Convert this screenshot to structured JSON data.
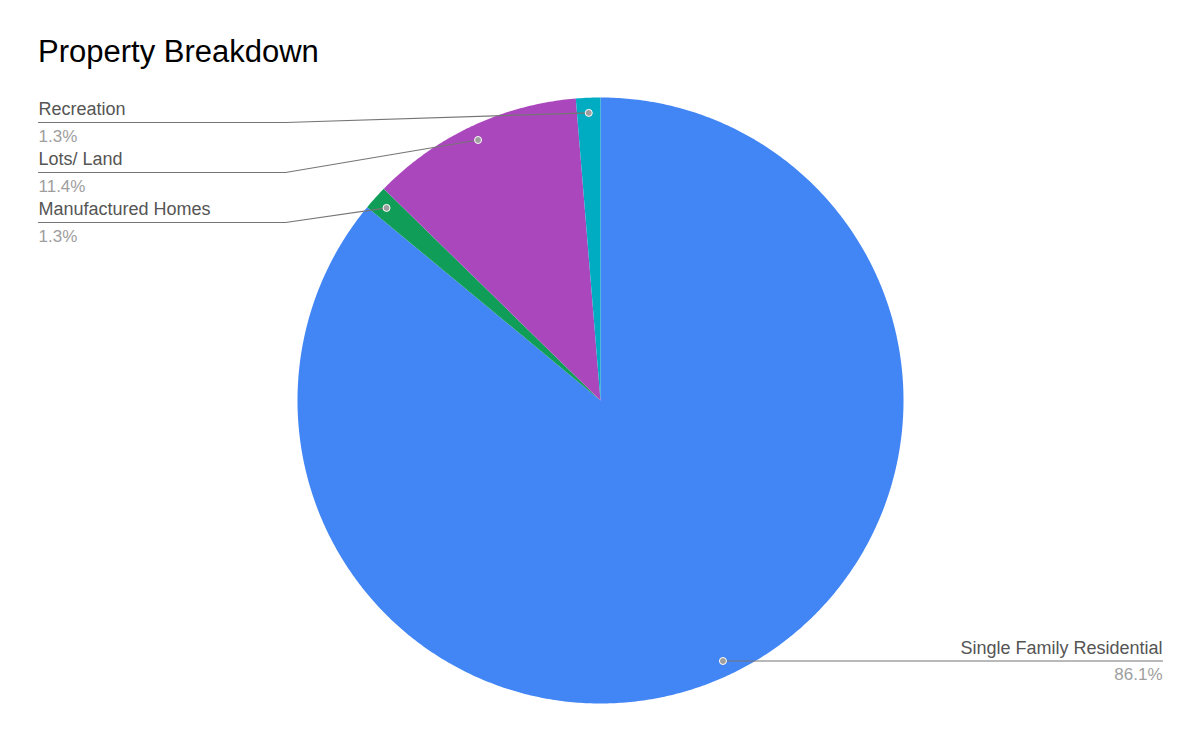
{
  "chart_data": {
    "type": "pie",
    "title": "Property Breakdown",
    "categories": [
      "Single Family Residential",
      "Manufactured Homes",
      "Lots/ Land",
      "Recreation"
    ],
    "values": [
      86.1,
      1.3,
      11.4,
      1.3
    ],
    "value_labels": [
      "86.1%",
      "1.3%",
      "11.4%",
      "1.3%"
    ],
    "colors": [
      "#4285f4",
      "#0f9d58",
      "#ab47bc",
      "#00acc1"
    ],
    "data_labels": true
  }
}
